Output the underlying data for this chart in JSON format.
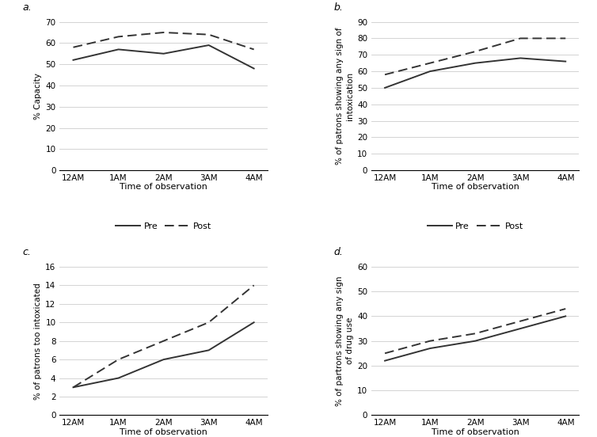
{
  "x_labels": [
    "12AM",
    "1AM",
    "2AM",
    "3AM",
    "4AM"
  ],
  "panels": [
    {
      "label": "a.",
      "ylabel": "% Capacity",
      "ylim": [
        0,
        70
      ],
      "yticks": [
        0,
        10,
        20,
        30,
        40,
        50,
        60,
        70
      ],
      "pre": [
        52,
        57,
        55,
        59,
        48
      ],
      "post": [
        58,
        63,
        65,
        64,
        57
      ]
    },
    {
      "label": "b.",
      "ylabel": "% of patrons showing any sign of\nintoxication",
      "ylim": [
        0,
        90
      ],
      "yticks": [
        0,
        10,
        20,
        30,
        40,
        50,
        60,
        70,
        80,
        90
      ],
      "pre": [
        50,
        60,
        65,
        68,
        66
      ],
      "post": [
        58,
        65,
        72,
        80,
        80
      ]
    },
    {
      "label": "c.",
      "ylabel": "% of patrons too intoxicated",
      "ylim": [
        0,
        16
      ],
      "yticks": [
        0,
        2,
        4,
        6,
        8,
        10,
        12,
        14,
        16
      ],
      "pre": [
        3,
        4,
        6,
        7,
        10
      ],
      "post": [
        3,
        6,
        8,
        10,
        14
      ]
    },
    {
      "label": "d.",
      "ylabel": "% of partrons showing any sign\nof drug use",
      "ylim": [
        0,
        60
      ],
      "yticks": [
        0,
        10,
        20,
        30,
        40,
        50,
        60
      ],
      "pre": [
        22,
        27,
        30,
        35,
        40
      ],
      "post": [
        25,
        30,
        33,
        38,
        43
      ]
    }
  ],
  "xlabel": "Time of observation",
  "line_color": "#333333",
  "background_color": "#ffffff",
  "grid_color": "#cccccc",
  "figure_width": 7.54,
  "figure_height": 5.52,
  "dpi": 100
}
